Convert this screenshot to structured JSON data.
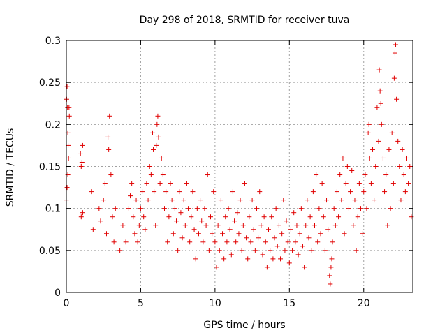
{
  "chart_data": {
    "type": "scatter",
    "title": "Day 298 of 2018, SRMTID for receiver tuva",
    "xlabel": "GPS time / hours",
    "ylabel": "SRMTID / TECUs",
    "xlim": [
      0,
      23.3
    ],
    "ylim": [
      0,
      0.3
    ],
    "xticks": [
      0,
      5,
      10,
      15,
      20
    ],
    "xtick_labels": [
      "0",
      "5",
      "10",
      "15",
      "20"
    ],
    "yticks": [
      0,
      0.05,
      0.1,
      0.15,
      0.2,
      0.25,
      0.3
    ],
    "ytick_labels": [
      "0",
      "0.05",
      "0.1",
      "0.15",
      "0.2",
      "0.25",
      "0.3"
    ],
    "grid": true,
    "marker": "+",
    "color": "#e00000",
    "series": [
      {
        "name": "SRMTID",
        "points": [
          [
            0.0,
            0.11
          ],
          [
            0.02,
            0.23
          ],
          [
            0.05,
            0.245
          ],
          [
            0.08,
            0.22
          ],
          [
            0.1,
            0.19
          ],
          [
            0.12,
            0.175
          ],
          [
            0.15,
            0.16
          ],
          [
            0.18,
            0.22
          ],
          [
            0.2,
            0.21
          ],
          [
            0.05,
            0.125
          ],
          [
            0.1,
            0.14
          ],
          [
            0.95,
            0.165
          ],
          [
            1.0,
            0.15
          ],
          [
            1.05,
            0.155
          ],
          [
            1.1,
            0.175
          ],
          [
            1.0,
            0.09
          ],
          [
            1.1,
            0.095
          ],
          [
            1.7,
            0.12
          ],
          [
            1.8,
            0.075
          ],
          [
            2.2,
            0.1
          ],
          [
            2.3,
            0.085
          ],
          [
            2.5,
            0.11
          ],
          [
            2.6,
            0.13
          ],
          [
            2.7,
            0.07
          ],
          [
            2.8,
            0.185
          ],
          [
            2.85,
            0.17
          ],
          [
            2.9,
            0.21
          ],
          [
            3.0,
            0.14
          ],
          [
            3.1,
            0.09
          ],
          [
            3.2,
            0.06
          ],
          [
            3.3,
            0.1
          ],
          [
            3.6,
            0.05
          ],
          [
            3.8,
            0.08
          ],
          [
            4.0,
            0.06
          ],
          [
            4.2,
            0.1
          ],
          [
            4.3,
            0.115
          ],
          [
            4.4,
            0.13
          ],
          [
            4.5,
            0.09
          ],
          [
            4.6,
            0.07
          ],
          [
            4.7,
            0.11
          ],
          [
            4.8,
            0.06
          ],
          [
            4.9,
            0.08
          ],
          [
            5.0,
            0.1
          ],
          [
            5.1,
            0.12
          ],
          [
            5.2,
            0.09
          ],
          [
            5.3,
            0.075
          ],
          [
            5.4,
            0.13
          ],
          [
            5.5,
            0.11
          ],
          [
            5.6,
            0.15
          ],
          [
            5.7,
            0.14
          ],
          [
            5.8,
            0.19
          ],
          [
            5.85,
            0.17
          ],
          [
            5.9,
            0.12
          ],
          [
            6.0,
            0.08
          ],
          [
            6.05,
            0.175
          ],
          [
            6.1,
            0.2
          ],
          [
            6.15,
            0.21
          ],
          [
            6.2,
            0.185
          ],
          [
            6.3,
            0.13
          ],
          [
            6.4,
            0.16
          ],
          [
            6.5,
            0.14
          ],
          [
            6.6,
            0.1
          ],
          [
            6.7,
            0.12
          ],
          [
            6.8,
            0.06
          ],
          [
            6.9,
            0.09
          ],
          [
            7.0,
            0.13
          ],
          [
            7.1,
            0.11
          ],
          [
            7.2,
            0.07
          ],
          [
            7.3,
            0.1
          ],
          [
            7.4,
            0.085
          ],
          [
            7.5,
            0.05
          ],
          [
            7.6,
            0.12
          ],
          [
            7.7,
            0.095
          ],
          [
            7.8,
            0.065
          ],
          [
            7.9,
            0.11
          ],
          [
            8.0,
            0.08
          ],
          [
            8.1,
            0.13
          ],
          [
            8.2,
            0.1
          ],
          [
            8.3,
            0.06
          ],
          [
            8.4,
            0.09
          ],
          [
            8.5,
            0.12
          ],
          [
            8.6,
            0.075
          ],
          [
            8.7,
            0.04
          ],
          [
            8.8,
            0.1
          ],
          [
            8.9,
            0.07
          ],
          [
            9.0,
            0.11
          ],
          [
            9.1,
            0.085
          ],
          [
            9.2,
            0.06
          ],
          [
            9.3,
            0.1
          ],
          [
            9.4,
            0.08
          ],
          [
            9.5,
            0.14
          ],
          [
            9.6,
            0.05
          ],
          [
            9.7,
            0.09
          ],
          [
            9.8,
            0.07
          ],
          [
            9.9,
            0.12
          ],
          [
            10.0,
            0.06
          ],
          [
            10.1,
            0.03
          ],
          [
            10.2,
            0.08
          ],
          [
            10.3,
            0.05
          ],
          [
            10.4,
            0.11
          ],
          [
            10.5,
            0.07
          ],
          [
            10.6,
            0.04
          ],
          [
            10.7,
            0.09
          ],
          [
            10.8,
            0.06
          ],
          [
            10.9,
            0.1
          ],
          [
            11.0,
            0.075
          ],
          [
            11.1,
            0.045
          ],
          [
            11.2,
            0.12
          ],
          [
            11.3,
            0.085
          ],
          [
            11.4,
            0.06
          ],
          [
            11.5,
            0.095
          ],
          [
            11.6,
            0.07
          ],
          [
            11.7,
            0.11
          ],
          [
            11.8,
            0.05
          ],
          [
            11.9,
            0.08
          ],
          [
            12.0,
            0.13
          ],
          [
            12.1,
            0.065
          ],
          [
            12.2,
            0.04
          ],
          [
            12.3,
            0.09
          ],
          [
            12.4,
            0.06
          ],
          [
            12.5,
            0.11
          ],
          [
            12.6,
            0.075
          ],
          [
            12.7,
            0.05
          ],
          [
            12.8,
            0.1
          ],
          [
            12.9,
            0.065
          ],
          [
            13.0,
            0.12
          ],
          [
            13.1,
            0.08
          ],
          [
            13.2,
            0.045
          ],
          [
            13.3,
            0.09
          ],
          [
            13.4,
            0.06
          ],
          [
            13.5,
            0.03
          ],
          [
            13.6,
            0.075
          ],
          [
            13.7,
            0.05
          ],
          [
            13.8,
            0.09
          ],
          [
            13.9,
            0.04
          ],
          [
            14.0,
            0.065
          ],
          [
            14.1,
            0.1
          ],
          [
            14.2,
            0.055
          ],
          [
            14.3,
            0.08
          ],
          [
            14.4,
            0.04
          ],
          [
            14.5,
            0.07
          ],
          [
            14.6,
            0.11
          ],
          [
            14.7,
            0.05
          ],
          [
            14.8,
            0.085
          ],
          [
            14.9,
            0.06
          ],
          [
            15.0,
            0.035
          ],
          [
            15.1,
            0.075
          ],
          [
            15.2,
            0.05
          ],
          [
            15.3,
            0.095
          ],
          [
            15.4,
            0.06
          ],
          [
            15.5,
            0.08
          ],
          [
            15.6,
            0.045
          ],
          [
            15.7,
            0.07
          ],
          [
            15.8,
            0.1
          ],
          [
            15.9,
            0.055
          ],
          [
            16.0,
            0.03
          ],
          [
            16.1,
            0.08
          ],
          [
            16.2,
            0.11
          ],
          [
            16.3,
            0.065
          ],
          [
            16.4,
            0.09
          ],
          [
            16.5,
            0.05
          ],
          [
            16.6,
            0.12
          ],
          [
            16.7,
            0.08
          ],
          [
            16.8,
            0.14
          ],
          [
            16.9,
            0.06
          ],
          [
            17.0,
            0.1
          ],
          [
            17.1,
            0.07
          ],
          [
            17.2,
            0.13
          ],
          [
            17.3,
            0.09
          ],
          [
            17.4,
            0.05
          ],
          [
            17.5,
            0.11
          ],
          [
            17.6,
            0.075
          ],
          [
            17.7,
            0.02
          ],
          [
            17.75,
            0.01
          ],
          [
            17.8,
            0.03
          ],
          [
            17.85,
            0.04
          ],
          [
            17.9,
            0.06
          ],
          [
            18.0,
            0.1
          ],
          [
            18.1,
            0.08
          ],
          [
            18.2,
            0.12
          ],
          [
            18.3,
            0.09
          ],
          [
            18.4,
            0.14
          ],
          [
            18.5,
            0.11
          ],
          [
            18.6,
            0.16
          ],
          [
            18.7,
            0.07
          ],
          [
            18.8,
            0.13
          ],
          [
            18.9,
            0.15
          ],
          [
            19.0,
            0.1
          ],
          [
            19.1,
            0.12
          ],
          [
            19.2,
            0.145
          ],
          [
            19.3,
            0.08
          ],
          [
            19.4,
            0.11
          ],
          [
            19.5,
            0.05
          ],
          [
            19.6,
            0.09
          ],
          [
            19.7,
            0.13
          ],
          [
            19.8,
            0.1
          ],
          [
            19.9,
            0.07
          ],
          [
            20.0,
            0.12
          ],
          [
            20.1,
            0.14
          ],
          [
            20.2,
            0.1
          ],
          [
            20.3,
            0.19
          ],
          [
            20.35,
            0.2
          ],
          [
            20.4,
            0.16
          ],
          [
            20.5,
            0.13
          ],
          [
            20.6,
            0.17
          ],
          [
            20.7,
            0.11
          ],
          [
            20.8,
            0.15
          ],
          [
            20.9,
            0.22
          ],
          [
            21.0,
            0.18
          ],
          [
            21.05,
            0.265
          ],
          [
            21.1,
            0.24
          ],
          [
            21.15,
            0.225
          ],
          [
            21.2,
            0.2
          ],
          [
            21.3,
            0.16
          ],
          [
            21.4,
            0.12
          ],
          [
            21.5,
            0.14
          ],
          [
            21.6,
            0.08
          ],
          [
            21.7,
            0.17
          ],
          [
            21.8,
            0.1
          ],
          [
            21.9,
            0.19
          ],
          [
            22.0,
            0.13
          ],
          [
            22.05,
            0.255
          ],
          [
            22.1,
            0.285
          ],
          [
            22.15,
            0.295
          ],
          [
            22.2,
            0.23
          ],
          [
            22.3,
            0.18
          ],
          [
            22.4,
            0.15
          ],
          [
            22.5,
            0.11
          ],
          [
            22.6,
            0.17
          ],
          [
            22.7,
            0.14
          ],
          [
            22.8,
            0.12
          ],
          [
            22.9,
            0.16
          ],
          [
            23.0,
            0.13
          ],
          [
            23.1,
            0.15
          ],
          [
            23.2,
            0.09
          ]
        ]
      }
    ]
  }
}
